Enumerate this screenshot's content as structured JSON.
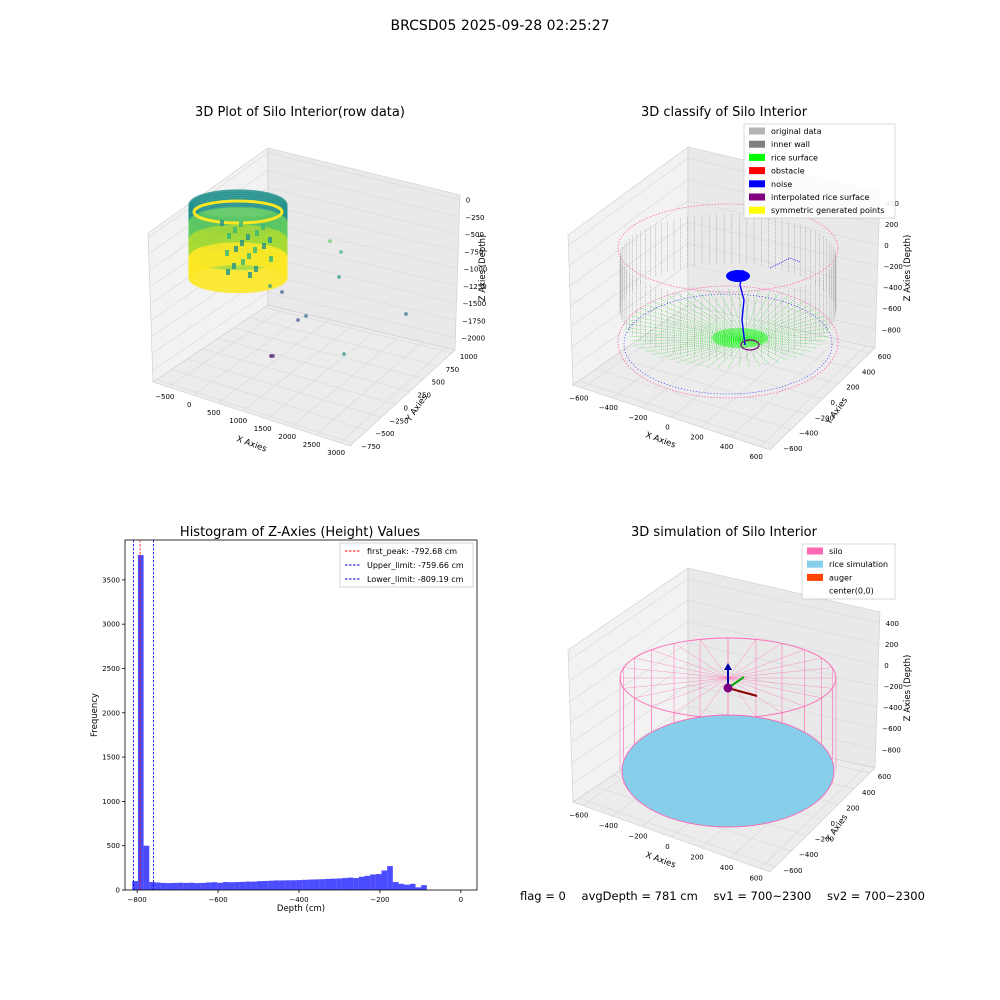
{
  "figure": {
    "suptitle": "BRCSD05 2025-09-28 02:25:27",
    "status": {
      "flag": "flag = 0",
      "avg_depth": "avgDepth = 781 cm",
      "sv1": "sv1 = 700~2300",
      "sv2": "sv2 = 700~2300"
    }
  },
  "chart_data": [
    {
      "type": "scatter3d",
      "title": "3D Plot of Silo Interior(row data)",
      "xlabel": "X Axies",
      "ylabel": "Y Axies",
      "zlabel": "Z Axies (Depth)",
      "xticks": [
        "−500",
        "0",
        "500",
        "1000",
        "1500",
        "2000",
        "2500",
        "3000"
      ],
      "yticks": [
        "−750",
        "−500",
        "−250",
        "0",
        "250",
        "500",
        "750",
        "1000"
      ],
      "zticks": [
        "−2000",
        "−1750",
        "−1500",
        "−1250",
        "−1000",
        "−750",
        "−500",
        "−250",
        "0"
      ],
      "colormap": "viridis"
    },
    {
      "type": "scatter3d",
      "title": "3D classify of Silo Interior",
      "xlabel": "X Axies",
      "ylabel": "Y Axies",
      "zlabel": "Z Axies (Depth)",
      "xticks": [
        "−600",
        "−400",
        "−200",
        "0",
        "200",
        "400",
        "600"
      ],
      "yticks": [
        "−600",
        "−400",
        "−200",
        "0",
        "200",
        "400",
        "600"
      ],
      "zticks": [
        "−800",
        "−600",
        "−400",
        "−200",
        "0",
        "200",
        "400"
      ],
      "legend_position": "top-right",
      "legend": [
        {
          "label": "original data",
          "color": "#b4b4b4"
        },
        {
          "label": "inner wall",
          "color": "#808080"
        },
        {
          "label": "rice surface",
          "color": "#00ff00"
        },
        {
          "label": "obstacle",
          "color": "#ff0000"
        },
        {
          "label": "noise",
          "color": "#0000ff"
        },
        {
          "label": "interpolated rice surface",
          "color": "#800080"
        },
        {
          "label": "symmetric generated points",
          "color": "#ffff00"
        }
      ]
    },
    {
      "type": "bar",
      "title": "Histogram of Z-Axies (Height) Values",
      "xlabel": "Depth (cm)",
      "ylabel": "Frequency",
      "xlim": [
        -830,
        40
      ],
      "ylim": [
        0,
        3950
      ],
      "xticks": [
        -800,
        -600,
        -400,
        -200,
        0
      ],
      "yticks": [
        0,
        500,
        1000,
        1500,
        2000,
        2500,
        3000,
        3500
      ],
      "bar_color": "#0000ff",
      "bin_width": 14,
      "bin_start": -812,
      "values": [
        100,
        3780,
        500,
        90,
        85,
        80,
        78,
        80,
        82,
        80,
        82,
        78,
        80,
        85,
        88,
        82,
        90,
        88,
        90,
        92,
        95,
        95,
        100,
        102,
        105,
        108,
        108,
        110,
        110,
        112,
        115,
        118,
        120,
        122,
        125,
        128,
        130,
        135,
        140,
        135,
        150,
        160,
        175,
        180,
        220,
        270,
        90,
        70,
        60,
        70,
        30,
        55
      ],
      "legend_position": "top-right",
      "vlines": [
        {
          "label": "first_peak: -792.68 cm",
          "x": -792.68,
          "color": "#ff0000"
        },
        {
          "label": "Upper_limit: -759.66 cm",
          "x": -759.66,
          "color": "#0000ff"
        },
        {
          "label": "Lower_limit: -809.19 cm",
          "x": -809.19,
          "color": "#0000ff"
        }
      ]
    },
    {
      "type": "surface3d",
      "title": "3D simulation of Silo Interior",
      "xlabel": "X Axies",
      "ylabel": "Y Axies",
      "zlabel": "Z Axies (Depth)",
      "xticks": [
        "−600",
        "−400",
        "−200",
        "0",
        "200",
        "400",
        "600"
      ],
      "yticks": [
        "−600",
        "−400",
        "−200",
        "0",
        "200",
        "400",
        "600"
      ],
      "zticks": [
        "−800",
        "−600",
        "−400",
        "−200",
        "0",
        "200",
        "400"
      ],
      "legend_position": "top-right",
      "legend": [
        {
          "label": "silo",
          "color": "#ff69b4"
        },
        {
          "label": "rice simulation",
          "color": "#87ceeb"
        },
        {
          "label": "auger",
          "color": "#ff4500"
        },
        {
          "label": "center(0,0)",
          "color": "#ffffff"
        }
      ]
    }
  ]
}
